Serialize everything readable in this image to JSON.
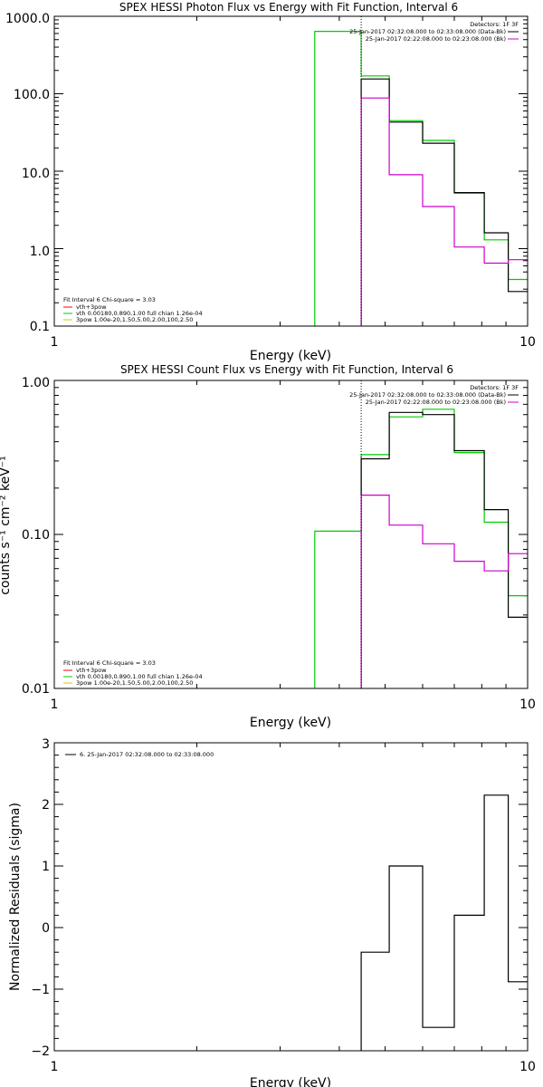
{
  "chart_data": [
    {
      "type": "line",
      "title": "SPEX HESSI Photon Flux vs Energy with Fit Function, Interval 6",
      "xlabel": "Energy (keV)",
      "ylabel": "",
      "xscale": "log",
      "yscale": "log",
      "xlim": [
        1,
        10
      ],
      "ylim": [
        0.1,
        1000
      ],
      "xticks": [
        "1",
        "10"
      ],
      "yticks": [
        "0.1",
        "1.0",
        "10.0",
        "100.0",
        "1000.0"
      ],
      "vline_x": 4.45,
      "top_legend": {
        "detectors": "Detectors: 1F 3F",
        "entries": [
          {
            "label": "25-Jan-2017 02:32:08.000 to 02:33:08.000 (Data-Bk)",
            "color": "#000000"
          },
          {
            "label": "25-Jan-2017 02:22:08.000 to 02:23:08.000 (Bk)",
            "color": "#cc00cc"
          }
        ]
      },
      "fit_legend": {
        "heading": "Fit Interval 6   Chi-square = 3.03",
        "entries": [
          {
            "label": "vth+3pow",
            "color": "#ff0000"
          },
          {
            "label": "vth 0.00180,0.890,1.00  full chian 1.26e-04",
            "color": "#00cc00"
          },
          {
            "label": "3pow 1.00e-20,1.50,5.00,2.00,100,2.50",
            "color": "#cccc00"
          }
        ]
      },
      "series": [
        {
          "color": "#00cc00",
          "edges": [
            3.55,
            4.45,
            5.1,
            6.0,
            7.0,
            8.1,
            9.1,
            10.0
          ],
          "values": [
            640,
            170,
            45,
            25,
            5.2,
            1.3,
            0.4
          ]
        },
        {
          "color": "#000000",
          "edges": [
            4.45,
            5.1,
            6.0,
            7.0,
            8.1,
            9.1,
            10.0
          ],
          "values": [
            155,
            43,
            23,
            5.3,
            1.6,
            0.28
          ]
        },
        {
          "color": "#cc00cc",
          "edges": [
            4.45,
            5.1,
            6.0,
            7.0,
            8.1,
            9.1,
            10.0
          ],
          "values": [
            88,
            9.0,
            3.5,
            1.05,
            0.65,
            0.72
          ]
        }
      ]
    },
    {
      "type": "line",
      "title": "SPEX HESSI Count Flux vs Energy with Fit Function, Interval 6",
      "xlabel": "Energy (keV)",
      "ylabel": "counts s⁻¹ cm⁻² keV⁻¹",
      "xscale": "log",
      "yscale": "log",
      "xlim": [
        1,
        10
      ],
      "ylim": [
        0.01,
        1.0
      ],
      "xticks": [
        "1",
        "10"
      ],
      "yticks": [
        "0.01",
        "0.10",
        "1.00"
      ],
      "vline_x": 4.45,
      "top_legend": {
        "detectors": "Detectors: 1F 3F",
        "entries": [
          {
            "label": "25-Jan-2017 02:32:08.000 to 02:33:08.000 (Data-Bk)",
            "color": "#000000"
          },
          {
            "label": "25-Jan-2017 02:22:08.000 to 02:23:08.000 (Bk)",
            "color": "#cc00cc"
          }
        ]
      },
      "fit_legend": {
        "heading": "Fit Interval 6   Chi-square = 3.03",
        "entries": [
          {
            "label": "vth+3pow",
            "color": "#ff0000"
          },
          {
            "label": "vth 0.00180,0.890,1.00  full chian 1.26e-04",
            "color": "#00cc00"
          },
          {
            "label": "3pow 1.00e-20,1.50,5.00,2.00,100,2.50",
            "color": "#cccc00"
          }
        ]
      },
      "series": [
        {
          "color": "#00cc00",
          "edges": [
            3.55,
            4.45,
            5.1,
            6.0,
            7.0,
            8.1,
            9.1,
            10.0
          ],
          "values": [
            0.105,
            0.33,
            0.58,
            0.65,
            0.34,
            0.12,
            0.04
          ]
        },
        {
          "color": "#000000",
          "edges": [
            4.45,
            5.1,
            6.0,
            7.0,
            8.1,
            9.1,
            10.0
          ],
          "values": [
            0.31,
            0.62,
            0.6,
            0.35,
            0.145,
            0.029
          ]
        },
        {
          "color": "#cc00cc",
          "edges": [
            4.45,
            5.1,
            6.0,
            7.0,
            8.1,
            9.1,
            10.0
          ],
          "values": [
            0.18,
            0.115,
            0.087,
            0.067,
            0.058,
            0.075
          ]
        }
      ]
    },
    {
      "type": "line",
      "title": "",
      "xlabel": "Energy (keV)",
      "ylabel": "Normalized Residuals (sigma)",
      "xscale": "log",
      "yscale": "linear",
      "xlim": [
        1,
        10
      ],
      "ylim": [
        -2,
        3
      ],
      "xticks": [
        "1",
        "10"
      ],
      "yticks": [
        "−2",
        "−1",
        "0",
        "1",
        "2",
        "3"
      ],
      "legend": {
        "label": "6. 25-Jan-2017 02:32:08.000 to 02:33:08.000",
        "color": "#000000"
      },
      "series": [
        {
          "color": "#000000",
          "edges": [
            4.45,
            5.1,
            6.0,
            7.0,
            8.1,
            9.1,
            10.0
          ],
          "values": [
            -0.4,
            1.0,
            -1.62,
            0.2,
            2.15,
            -0.88
          ]
        }
      ]
    }
  ]
}
